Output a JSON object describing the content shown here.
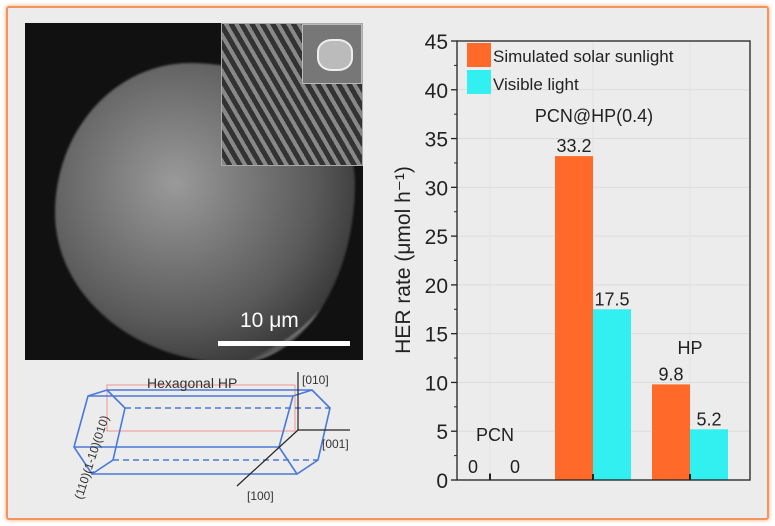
{
  "sem": {
    "scale_label": "10 μm"
  },
  "crystal": {
    "title": "Hexagonal HP",
    "faces_label": "(110)(1-10)(010)",
    "axis_010": "[010]",
    "axis_001": "[001]",
    "axis_100": "[100]"
  },
  "colors": {
    "orange": "#ff6a2a",
    "cyan": "#33f0f0",
    "frame": "#f4935a"
  },
  "chart_data": {
    "type": "bar",
    "categories": [
      "PCN",
      "PCN@HP(0.4)",
      "HP"
    ],
    "series": [
      {
        "name": "Simulated solar sunlight",
        "values": [
          0,
          33.2,
          9.8
        ],
        "color": "#ff6a2a"
      },
      {
        "name": "Visible light",
        "values": [
          0,
          17.5,
          5.2
        ],
        "color": "#33f0f0"
      }
    ],
    "data_labels": [
      [
        "0",
        "33.2",
        "9.8"
      ],
      [
        "0",
        "17.5",
        "5.2"
      ]
    ],
    "ylabel": "HER rate (μmol h⁻¹)",
    "ylim": [
      0,
      45
    ],
    "yticks": [
      0,
      5,
      10,
      15,
      20,
      25,
      30,
      35,
      40,
      45
    ],
    "grid": true,
    "legend": "top-left"
  }
}
